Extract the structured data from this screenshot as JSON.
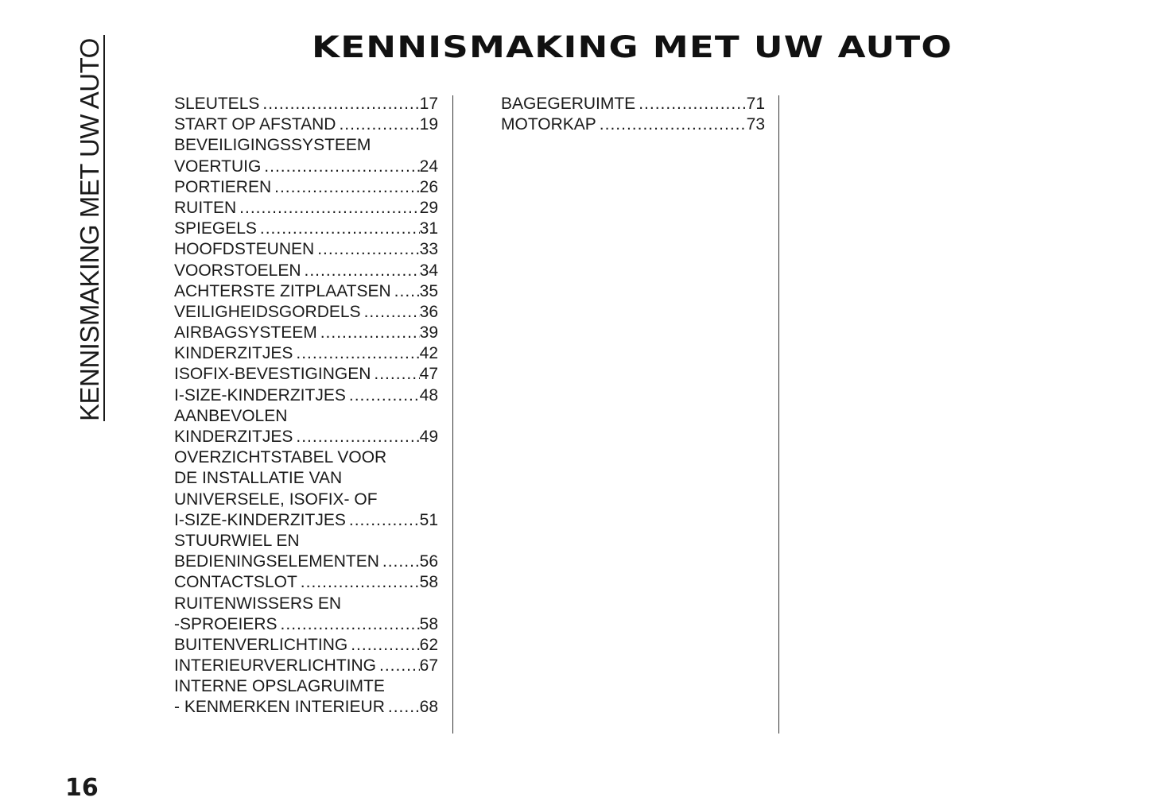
{
  "side_title": "KENNISMAKING MET UW AUTO",
  "title": "KENNISMAKING MET UW AUTO",
  "page_number": "16",
  "columns": [
    [
      {
        "text": "SLEUTELS",
        "page": "17"
      },
      {
        "text": "START OP AFSTAND",
        "page": "19"
      },
      {
        "text": "BEVEILIGINGSSYSTEEM",
        "page": ""
      },
      {
        "text": "VOERTUIG",
        "page": "24"
      },
      {
        "text": "PORTIEREN",
        "page": "26"
      },
      {
        "text": "RUITEN",
        "page": "29"
      },
      {
        "text": "SPIEGELS",
        "page": "31"
      },
      {
        "text": "HOOFDSTEUNEN",
        "page": "33"
      },
      {
        "text": "VOORSTOELEN",
        "page": "34"
      },
      {
        "text": "ACHTERSTE ZITPLAATSEN",
        "page": "35"
      },
      {
        "text": "VEILIGHEIDSGORDELS",
        "page": "36"
      },
      {
        "text": "AIRBAGSYSTEEM",
        "page": "39"
      },
      {
        "text": "KINDERZITJES",
        "page": "42"
      },
      {
        "text": "ISOFIX-BEVESTIGINGEN",
        "page": "47"
      },
      {
        "text": "I-SIZE-KINDERZITJES",
        "page": "48"
      },
      {
        "text": "AANBEVOLEN",
        "page": ""
      },
      {
        "text": "KINDERZITJES",
        "page": "49"
      },
      {
        "text": "OVERZICHTSTABEL VOOR",
        "page": ""
      },
      {
        "text": "DE INSTALLATIE VAN",
        "page": ""
      },
      {
        "text": "UNIVERSELE, ISOFIX- OF",
        "page": ""
      },
      {
        "text": "I-SIZE-KINDERZITJES",
        "page": "51"
      },
      {
        "text": "STUURWIEL EN",
        "page": ""
      },
      {
        "text": "BEDIENINGSELEMENTEN",
        "page": "56"
      },
      {
        "text": "CONTACTSLOT",
        "page": "58"
      },
      {
        "text": "RUITENWISSERS EN",
        "page": ""
      },
      {
        "text": "-SPROEIERS",
        "page": "58"
      },
      {
        "text": "BUITENVERLICHTING",
        "page": "62"
      },
      {
        "text": "INTERIEURVERLICHTING",
        "page": "67"
      },
      {
        "text": "INTERNE OPSLAGRUIMTE",
        "page": ""
      },
      {
        "text": "- KENMERKEN INTERIEUR",
        "page": "68"
      }
    ],
    [
      {
        "text": "BAGEGERUIMTE",
        "page": "71"
      },
      {
        "text": "MOTORKAP",
        "page": "73"
      }
    ]
  ]
}
